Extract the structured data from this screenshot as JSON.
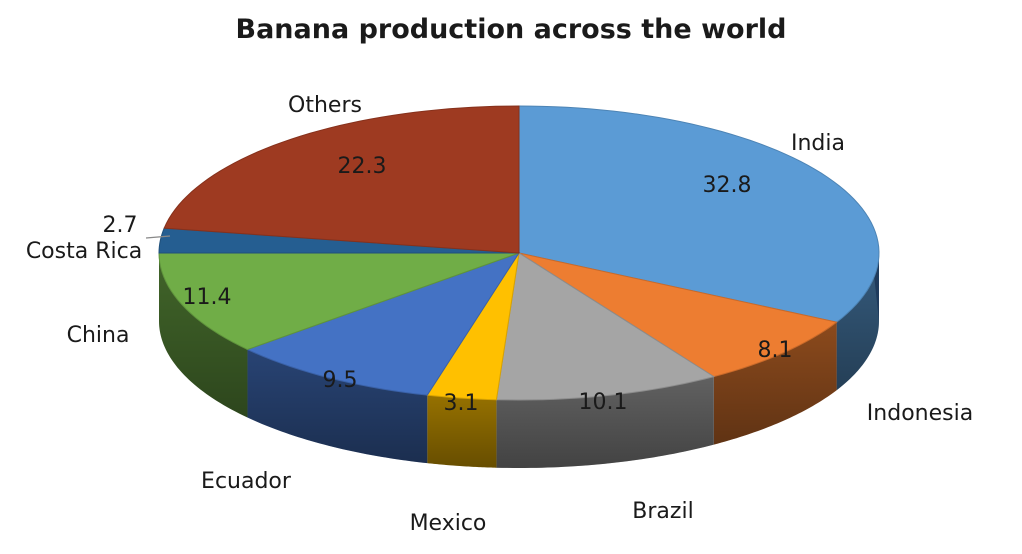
{
  "chart_data": {
    "type": "pie",
    "title": "Banana production across the world",
    "categories": [
      "India",
      "Indonesia",
      "Brazil",
      "Mexico",
      "Ecuador",
      "China",
      "Costa Rica",
      "Others"
    ],
    "values": [
      32.8,
      8.1,
      10.1,
      3.1,
      9.5,
      11.4,
      2.7,
      22.3
    ],
    "value_labels": [
      "32.8",
      "8.1",
      "10.1",
      "3.1",
      "9.5",
      "11.4",
      "2.7",
      "22.3"
    ],
    "colors": [
      "#5B9BD5",
      "#ED7D31",
      "#A5A5A5",
      "#FFC000",
      "#4472C4",
      "#70AD47",
      "#255E91",
      "#9E3A21"
    ],
    "style": "3d-tilted",
    "start": "12 o'clock, clockwise"
  }
}
